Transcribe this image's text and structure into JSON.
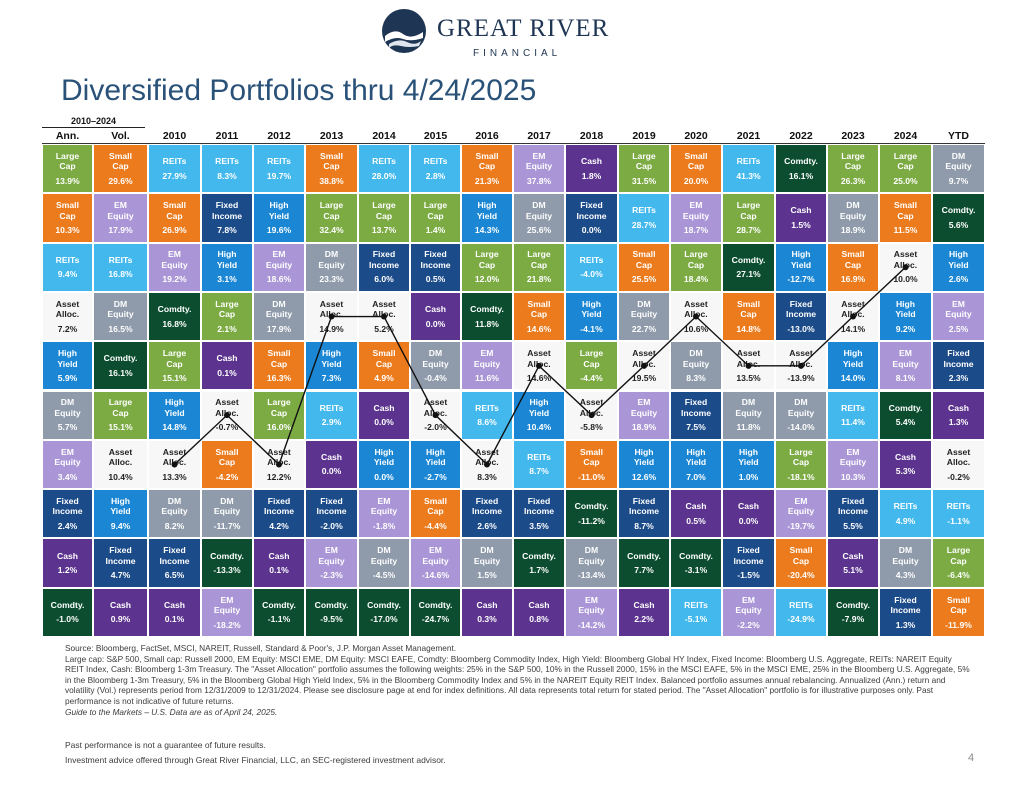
{
  "header": {
    "logo_name": "GREAT RIVER",
    "logo_sub": "FINANCIAL",
    "title": "Diversified Portfolios thru 4/24/2025"
  },
  "colors": {
    "Large Cap": "#7cab44",
    "Small Cap": "#ec7b1d",
    "EM Equity": "#aa96d6",
    "DM Equity": "#8f9baa",
    "REITs": "#43b8ed",
    "Fixed Income": "#1c4b89",
    "High Yield": "#1b87d4",
    "Asset Alloc.": "#f7f7f7",
    "Cash": "#5c338e",
    "Comdty.": "#0b4d2e"
  },
  "chart_data": {
    "type": "table",
    "title": "Diversified Portfolios thru 4/24/2025",
    "range_label": "2010–2024",
    "columns": [
      "Ann.",
      "Vol.",
      "2010",
      "2011",
      "2012",
      "2013",
      "2014",
      "2015",
      "2016",
      "2017",
      "2018",
      "2019",
      "2020",
      "2021",
      "2022",
      "2023",
      "2024",
      "YTD"
    ],
    "cells": [
      [
        [
          "Large Cap",
          "13.9%"
        ],
        [
          "Small Cap",
          "29.6%"
        ],
        [
          "REITs",
          "27.9%"
        ],
        [
          "REITs",
          "8.3%"
        ],
        [
          "REITs",
          "19.7%"
        ],
        [
          "Small Cap",
          "38.8%"
        ],
        [
          "REITs",
          "28.0%"
        ],
        [
          "REITs",
          "2.8%"
        ],
        [
          "Small Cap",
          "21.3%"
        ],
        [
          "EM Equity",
          "37.8%"
        ],
        [
          "Cash",
          "1.8%"
        ],
        [
          "Large Cap",
          "31.5%"
        ],
        [
          "Small Cap",
          "20.0%"
        ],
        [
          "REITs",
          "41.3%"
        ],
        [
          "Comdty.",
          "16.1%"
        ],
        [
          "Large Cap",
          "26.3%"
        ],
        [
          "Large Cap",
          "25.0%"
        ],
        [
          "DM Equity",
          "9.7%"
        ]
      ],
      [
        [
          "Small Cap",
          "10.3%"
        ],
        [
          "EM Equity",
          "17.9%"
        ],
        [
          "Small Cap",
          "26.9%"
        ],
        [
          "Fixed Income",
          "7.8%"
        ],
        [
          "High Yield",
          "19.6%"
        ],
        [
          "Large Cap",
          "32.4%"
        ],
        [
          "Large Cap",
          "13.7%"
        ],
        [
          "Large Cap",
          "1.4%"
        ],
        [
          "High Yield",
          "14.3%"
        ],
        [
          "DM Equity",
          "25.6%"
        ],
        [
          "Fixed Income",
          "0.0%"
        ],
        [
          "REITs",
          "28.7%"
        ],
        [
          "EM Equity",
          "18.7%"
        ],
        [
          "Large Cap",
          "28.7%"
        ],
        [
          "Cash",
          "1.5%"
        ],
        [
          "DM Equity",
          "18.9%"
        ],
        [
          "Small Cap",
          "11.5%"
        ],
        [
          "Comdty.",
          "5.6%"
        ]
      ],
      [
        [
          "REITs",
          "9.4%"
        ],
        [
          "REITs",
          "16.8%"
        ],
        [
          "EM Equity",
          "19.2%"
        ],
        [
          "High Yield",
          "3.1%"
        ],
        [
          "EM Equity",
          "18.6%"
        ],
        [
          "DM Equity",
          "23.3%"
        ],
        [
          "Fixed Income",
          "6.0%"
        ],
        [
          "Fixed Income",
          "0.5%"
        ],
        [
          "Large Cap",
          "12.0%"
        ],
        [
          "Large Cap",
          "21.8%"
        ],
        [
          "REITs",
          "-4.0%"
        ],
        [
          "Small Cap",
          "25.5%"
        ],
        [
          "Large Cap",
          "18.4%"
        ],
        [
          "Comdty.",
          "27.1%"
        ],
        [
          "High Yield",
          "-12.7%"
        ],
        [
          "Small Cap",
          "16.9%"
        ],
        [
          "Asset Alloc.",
          "10.0%"
        ],
        [
          "High Yield",
          "2.6%"
        ]
      ],
      [
        [
          "Asset Alloc.",
          "7.2%"
        ],
        [
          "DM Equity",
          "16.5%"
        ],
        [
          "Comdty.",
          "16.8%"
        ],
        [
          "Large Cap",
          "2.1%"
        ],
        [
          "DM Equity",
          "17.9%"
        ],
        [
          "Asset Alloc.",
          "14.9%"
        ],
        [
          "Asset Alloc.",
          "5.2%"
        ],
        [
          "Cash",
          "0.0%"
        ],
        [
          "Comdty.",
          "11.8%"
        ],
        [
          "Small Cap",
          "14.6%"
        ],
        [
          "High Yield",
          "-4.1%"
        ],
        [
          "DM Equity",
          "22.7%"
        ],
        [
          "Asset Alloc.",
          "10.6%"
        ],
        [
          "Small Cap",
          "14.8%"
        ],
        [
          "Fixed Income",
          "-13.0%"
        ],
        [
          "Asset Alloc.",
          "14.1%"
        ],
        [
          "High Yield",
          "9.2%"
        ],
        [
          "EM Equity",
          "2.5%"
        ]
      ],
      [
        [
          "High Yield",
          "5.9%"
        ],
        [
          "Comdty.",
          "16.1%"
        ],
        [
          "Large Cap",
          "15.1%"
        ],
        [
          "Cash",
          "0.1%"
        ],
        [
          "Small Cap",
          "16.3%"
        ],
        [
          "High Yield",
          "7.3%"
        ],
        [
          "Small Cap",
          "4.9%"
        ],
        [
          "DM Equity",
          "-0.4%"
        ],
        [
          "EM Equity",
          "11.6%"
        ],
        [
          "Asset Alloc.",
          "14.6%"
        ],
        [
          "Large Cap",
          "-4.4%"
        ],
        [
          "Asset Alloc.",
          "19.5%"
        ],
        [
          "DM Equity",
          "8.3%"
        ],
        [
          "Asset Alloc.",
          "13.5%"
        ],
        [
          "Asset Alloc.",
          "-13.9%"
        ],
        [
          "High Yield",
          "14.0%"
        ],
        [
          "EM Equity",
          "8.1%"
        ],
        [
          "Fixed Income",
          "2.3%"
        ]
      ],
      [
        [
          "DM Equity",
          "5.7%"
        ],
        [
          "Large Cap",
          "15.1%"
        ],
        [
          "High Yield",
          "14.8%"
        ],
        [
          "Asset Alloc.",
          "-0.7%"
        ],
        [
          "Large Cap",
          "16.0%"
        ],
        [
          "REITs",
          "2.9%"
        ],
        [
          "Cash",
          "0.0%"
        ],
        [
          "Asset Alloc.",
          "-2.0%"
        ],
        [
          "REITs",
          "8.6%"
        ],
        [
          "High Yield",
          "10.4%"
        ],
        [
          "Asset Alloc.",
          "-5.8%"
        ],
        [
          "EM Equity",
          "18.9%"
        ],
        [
          "Fixed Income",
          "7.5%"
        ],
        [
          "DM Equity",
          "11.8%"
        ],
        [
          "DM Equity",
          "-14.0%"
        ],
        [
          "REITs",
          "11.4%"
        ],
        [
          "Comdty.",
          "5.4%"
        ],
        [
          "Cash",
          "1.3%"
        ]
      ],
      [
        [
          "EM Equity",
          "3.4%"
        ],
        [
          "Asset Alloc.",
          "10.4%"
        ],
        [
          "Asset Alloc.",
          "13.3%"
        ],
        [
          "Small Cap",
          "-4.2%"
        ],
        [
          "Asset Alloc.",
          "12.2%"
        ],
        [
          "Cash",
          "0.0%"
        ],
        [
          "High Yield",
          "0.0%"
        ],
        [
          "High Yield",
          "-2.7%"
        ],
        [
          "Asset Alloc.",
          "8.3%"
        ],
        [
          "REITs",
          "8.7%"
        ],
        [
          "Small Cap",
          "-11.0%"
        ],
        [
          "High Yield",
          "12.6%"
        ],
        [
          "High Yield",
          "7.0%"
        ],
        [
          "High Yield",
          "1.0%"
        ],
        [
          "Large Cap",
          "-18.1%"
        ],
        [
          "EM Equity",
          "10.3%"
        ],
        [
          "Cash",
          "5.3%"
        ],
        [
          "Asset Alloc.",
          "-0.2%"
        ]
      ],
      [
        [
          "Fixed Income",
          "2.4%"
        ],
        [
          "High Yield",
          "9.4%"
        ],
        [
          "DM Equity",
          "8.2%"
        ],
        [
          "DM Equity",
          "-11.7%"
        ],
        [
          "Fixed Income",
          "4.2%"
        ],
        [
          "Fixed Income",
          "-2.0%"
        ],
        [
          "EM Equity",
          "-1.8%"
        ],
        [
          "Small Cap",
          "-4.4%"
        ],
        [
          "Fixed Income",
          "2.6%"
        ],
        [
          "Fixed Income",
          "3.5%"
        ],
        [
          "Comdty.",
          "-11.2%"
        ],
        [
          "Fixed Income",
          "8.7%"
        ],
        [
          "Cash",
          "0.5%"
        ],
        [
          "Cash",
          "0.0%"
        ],
        [
          "EM Equity",
          "-19.7%"
        ],
        [
          "Fixed Income",
          "5.5%"
        ],
        [
          "REITs",
          "4.9%"
        ],
        [
          "REITs",
          "-1.1%"
        ]
      ],
      [
        [
          "Cash",
          "1.2%"
        ],
        [
          "Fixed Income",
          "4.7%"
        ],
        [
          "Fixed Income",
          "6.5%"
        ],
        [
          "Comdty.",
          "-13.3%"
        ],
        [
          "Cash",
          "0.1%"
        ],
        [
          "EM Equity",
          "-2.3%"
        ],
        [
          "DM Equity",
          "-4.5%"
        ],
        [
          "EM Equity",
          "-14.6%"
        ],
        [
          "DM Equity",
          "1.5%"
        ],
        [
          "Comdty.",
          "1.7%"
        ],
        [
          "DM Equity",
          "-13.4%"
        ],
        [
          "Comdty.",
          "7.7%"
        ],
        [
          "Comdty.",
          "-3.1%"
        ],
        [
          "Fixed Income",
          "-1.5%"
        ],
        [
          "Small Cap",
          "-20.4%"
        ],
        [
          "Cash",
          "5.1%"
        ],
        [
          "DM Equity",
          "4.3%"
        ],
        [
          "Large Cap",
          "-6.4%"
        ]
      ],
      [
        [
          "Comdty.",
          "-1.0%"
        ],
        [
          "Cash",
          "0.9%"
        ],
        [
          "Cash",
          "0.1%"
        ],
        [
          "EM Equity",
          "-18.2%"
        ],
        [
          "Comdty.",
          "-1.1%"
        ],
        [
          "Comdty.",
          "-9.5%"
        ],
        [
          "Comdty.",
          "-17.0%"
        ],
        [
          "Comdty.",
          "-24.7%"
        ],
        [
          "Cash",
          "0.3%"
        ],
        [
          "Cash",
          "0.8%"
        ],
        [
          "EM Equity",
          "-14.2%"
        ],
        [
          "Cash",
          "2.2%"
        ],
        [
          "REITs",
          "-5.1%"
        ],
        [
          "EM Equity",
          "-2.2%"
        ],
        [
          "REITs",
          "-24.9%"
        ],
        [
          "Comdty.",
          "-7.9%"
        ],
        [
          "Fixed Income",
          "1.3%"
        ],
        [
          "Small Cap",
          "-11.9%"
        ]
      ]
    ]
  },
  "footnotes": {
    "source": "Source: Bloomberg, FactSet, MSCI, NAREIT, Russell, Standard & Poor's, J.P. Morgan Asset Management.",
    "indices": "Large cap: S&P 500, Small cap: Russell 2000, EM Equity: MSCI EME, DM Equity: MSCI EAFE, Comdty: Bloomberg Commodity Index, High Yield: Bloomberg Global HY Index, Fixed Income: Bloomberg U.S. Aggregate, REITs: NAREIT Equity REIT Index, Cash: Bloomberg 1-3m Treasury. The \"Asset Allocation\" portfolio assumes the following weights: 25% in the S&P 500, 10% in the Russell 2000, 15% in the MSCI EAFE, 5% in the MSCI EME, 25% in the Bloomberg U.S. Aggregate, 5% in the Bloomberg 1-3m Treasury, 5% in the Bloomberg Global High Yield Index, 5% in the Bloomberg Commodity Index and 5% in the NAREIT Equity REIT Index. Balanced portfolio assumes annual rebalancing. Annualized (Ann.) return and volatility (Vol.) represents period from 12/31/2009 to 12/31/2024. Please see disclosure page at end for index definitions. All data represents total return for stated period. The \"Asset Allocation\" portfolio is for illustrative purposes only. Past performance is not indicative of future returns.",
    "guide": "Guide to the Markets – U.S. Data are as of April 24, 2025.",
    "past_perf": "Past performance is not a guarantee of future results.",
    "advice": "Investment advice offered through Great River Financial, LLC, an SEC-registered investment advisor.",
    "page_number": "4"
  }
}
